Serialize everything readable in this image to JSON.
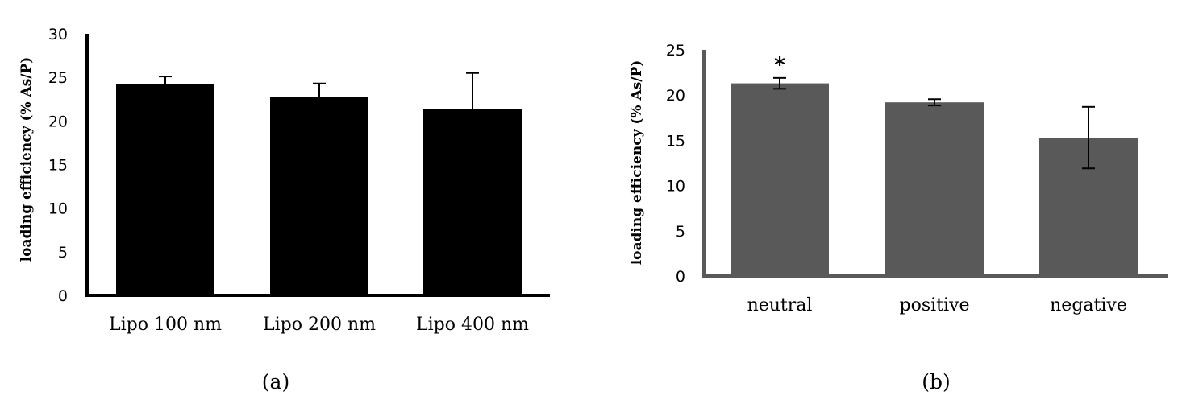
{
  "chart_data": [
    {
      "type": "bar",
      "panel_label": "(a)",
      "ylabel": "loading efficiency (% As/P)",
      "categories": [
        "Lipo 100 nm",
        "Lipo 200 nm",
        "Lipo 400 nm"
      ],
      "values": [
        24.2,
        22.8,
        21.4
      ],
      "errors": [
        0.9,
        1.5,
        4.1
      ],
      "ylim": [
        0,
        30
      ],
      "yticks": [
        "0",
        "5",
        "10",
        "15",
        "20",
        "25",
        "30"
      ],
      "bar_color": "#000000",
      "significance": [
        "",
        "",
        ""
      ],
      "grid": false
    },
    {
      "type": "bar",
      "panel_label": "(b)",
      "ylabel": "loading efficiency (% As/P)",
      "categories": [
        "neutral",
        "positive",
        "negative"
      ],
      "values": [
        21.3,
        19.2,
        15.3
      ],
      "errors": [
        0.6,
        0.35,
        3.4
      ],
      "ylim": [
        0,
        25
      ],
      "yticks": [
        "0",
        "5",
        "10",
        "15",
        "20",
        "25"
      ],
      "bar_color": "#595959",
      "significance": [
        "*",
        "",
        ""
      ],
      "grid": false
    }
  ]
}
